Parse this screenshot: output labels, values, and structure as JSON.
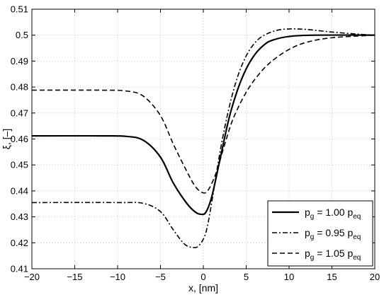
{
  "chart_data": {
    "type": "line",
    "title": "",
    "xlabel": "x, [nm]",
    "ylabel": "ξ, [–]",
    "xlim": [
      -20,
      20
    ],
    "ylim": [
      0.41,
      0.51
    ],
    "xticks": [
      -20,
      -15,
      -10,
      -5,
      0,
      5,
      10,
      15,
      20
    ],
    "yticks": [
      0.41,
      0.42,
      0.43,
      0.44,
      0.45,
      0.46,
      0.47,
      0.48,
      0.49,
      0.5,
      0.51
    ],
    "xtick_labels": [
      "−20",
      "−15",
      "−10",
      "−5",
      "0",
      "5",
      "10",
      "15",
      "20"
    ],
    "ytick_labels": [
      "0.41",
      "0.42",
      "0.43",
      "0.44",
      "0.45",
      "0.46",
      "0.47",
      "0.48",
      "0.49",
      "0.5",
      "0.51"
    ],
    "grid": true,
    "legend_position": "bottom-right",
    "series": [
      {
        "name": "p_g = 1.00 p_eq",
        "legend": {
          "p": "p",
          "sub1": "g",
          "mid": " = 1.00 p",
          "sub2": "eq"
        },
        "style": "solid",
        "color": "#000000",
        "points": [
          [
            -20,
            0.4612
          ],
          [
            -12,
            0.4612
          ],
          [
            -9,
            0.461
          ],
          [
            -7,
            0.4595
          ],
          [
            -5,
            0.453
          ],
          [
            -3.5,
            0.443
          ],
          [
            -2,
            0.4355
          ],
          [
            -1,
            0.432
          ],
          [
            -0.3,
            0.431
          ],
          [
            0.3,
            0.4318
          ],
          [
            1,
            0.438
          ],
          [
            2,
            0.453
          ],
          [
            3,
            0.468
          ],
          [
            4,
            0.479
          ],
          [
            5,
            0.487
          ],
          [
            6,
            0.4925
          ],
          [
            7,
            0.496
          ],
          [
            8,
            0.498
          ],
          [
            10,
            0.4995
          ],
          [
            13,
            0.5
          ],
          [
            20,
            0.5
          ]
        ]
      },
      {
        "name": "p_g = 0.95 p_eq",
        "legend": {
          "p": "p",
          "sub1": "g",
          "mid": " = 0.95 p",
          "sub2": "eq"
        },
        "style": "dashdot",
        "color": "#000000",
        "points": [
          [
            -20,
            0.4355
          ],
          [
            -10,
            0.4355
          ],
          [
            -7,
            0.4352
          ],
          [
            -5,
            0.432
          ],
          [
            -3.5,
            0.425
          ],
          [
            -2.2,
            0.4195
          ],
          [
            -1.2,
            0.4182
          ],
          [
            -0.5,
            0.419
          ],
          [
            0.3,
            0.424
          ],
          [
            1,
            0.436
          ],
          [
            2,
            0.456
          ],
          [
            3,
            0.472
          ],
          [
            4,
            0.484
          ],
          [
            5,
            0.492
          ],
          [
            6,
            0.497
          ],
          [
            7,
            0.4998
          ],
          [
            8.5,
            0.5018
          ],
          [
            10,
            0.5024
          ],
          [
            12,
            0.5022
          ],
          [
            15,
            0.5012
          ],
          [
            18,
            0.5004
          ],
          [
            20,
            0.5
          ]
        ]
      },
      {
        "name": "p_g = 1.05 p_eq",
        "legend": {
          "p": "p",
          "sub1": "g",
          "mid": " = 1.05 p",
          "sub2": "eq"
        },
        "style": "dashed",
        "color": "#000000",
        "points": [
          [
            -20,
            0.4788
          ],
          [
            -12,
            0.4788
          ],
          [
            -9,
            0.4785
          ],
          [
            -7,
            0.4765
          ],
          [
            -5,
            0.469
          ],
          [
            -3.5,
            0.458
          ],
          [
            -2,
            0.448
          ],
          [
            -1,
            0.442
          ],
          [
            -0.2,
            0.4395
          ],
          [
            0.5,
            0.44
          ],
          [
            1.5,
            0.447
          ],
          [
            2.5,
            0.458
          ],
          [
            3.5,
            0.468
          ],
          [
            5,
            0.478
          ],
          [
            6.5,
            0.485
          ],
          [
            8,
            0.49
          ],
          [
            10,
            0.4945
          ],
          [
            12,
            0.4972
          ],
          [
            15,
            0.499
          ],
          [
            20,
            0.5
          ]
        ]
      }
    ]
  }
}
